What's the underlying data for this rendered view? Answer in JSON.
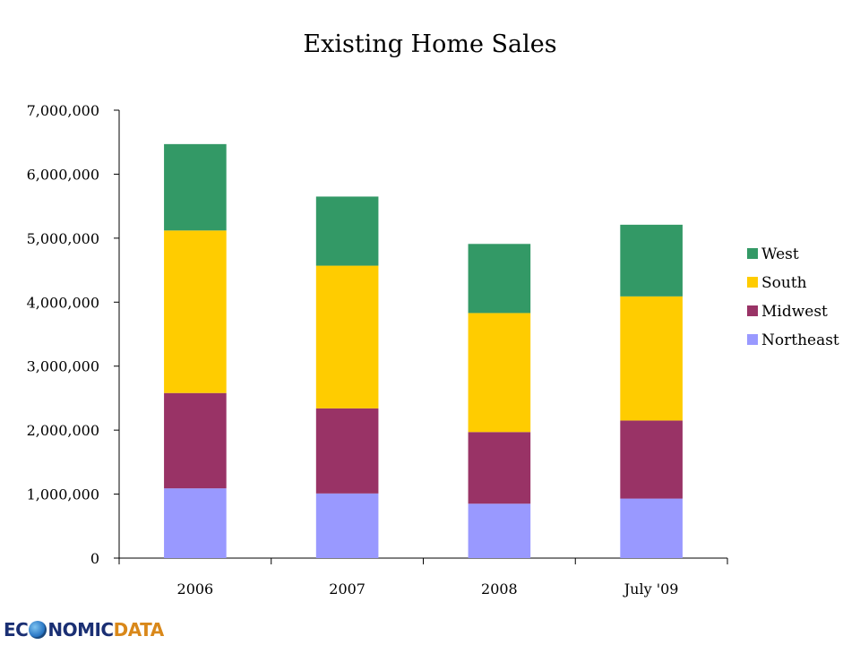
{
  "chart_data": {
    "type": "bar",
    "stacked": true,
    "title": "Existing Home Sales",
    "xlabel": "",
    "ylabel": "",
    "categories": [
      "2006",
      "2007",
      "2008",
      "July '09"
    ],
    "ylim": [
      0,
      7000000
    ],
    "yticks": [
      0,
      1000000,
      2000000,
      3000000,
      4000000,
      5000000,
      6000000,
      7000000
    ],
    "ytick_labels": [
      "0",
      "1,000,000",
      "2,000,000",
      "3,000,000",
      "4,000,000",
      "5,000,000",
      "6,000,000",
      "7,000,000"
    ],
    "grid": false,
    "legend_position": "right",
    "series": [
      {
        "name": "Northeast",
        "color": "#9999ff",
        "values": [
          1090000,
          1010000,
          850000,
          930000
        ]
      },
      {
        "name": "Midwest",
        "color": "#993366",
        "values": [
          1490000,
          1330000,
          1120000,
          1220000
        ]
      },
      {
        "name": "South",
        "color": "#ffcc00",
        "values": [
          2540000,
          2230000,
          1860000,
          1940000
        ]
      },
      {
        "name": "West",
        "color": "#339966",
        "values": [
          1350000,
          1080000,
          1080000,
          1120000
        ]
      }
    ],
    "legend_order": [
      "West",
      "South",
      "Midwest",
      "Northeast"
    ]
  },
  "logo": {
    "part_a": "EC",
    "part_b": "NOMIC",
    "part_c": "DATA"
  }
}
